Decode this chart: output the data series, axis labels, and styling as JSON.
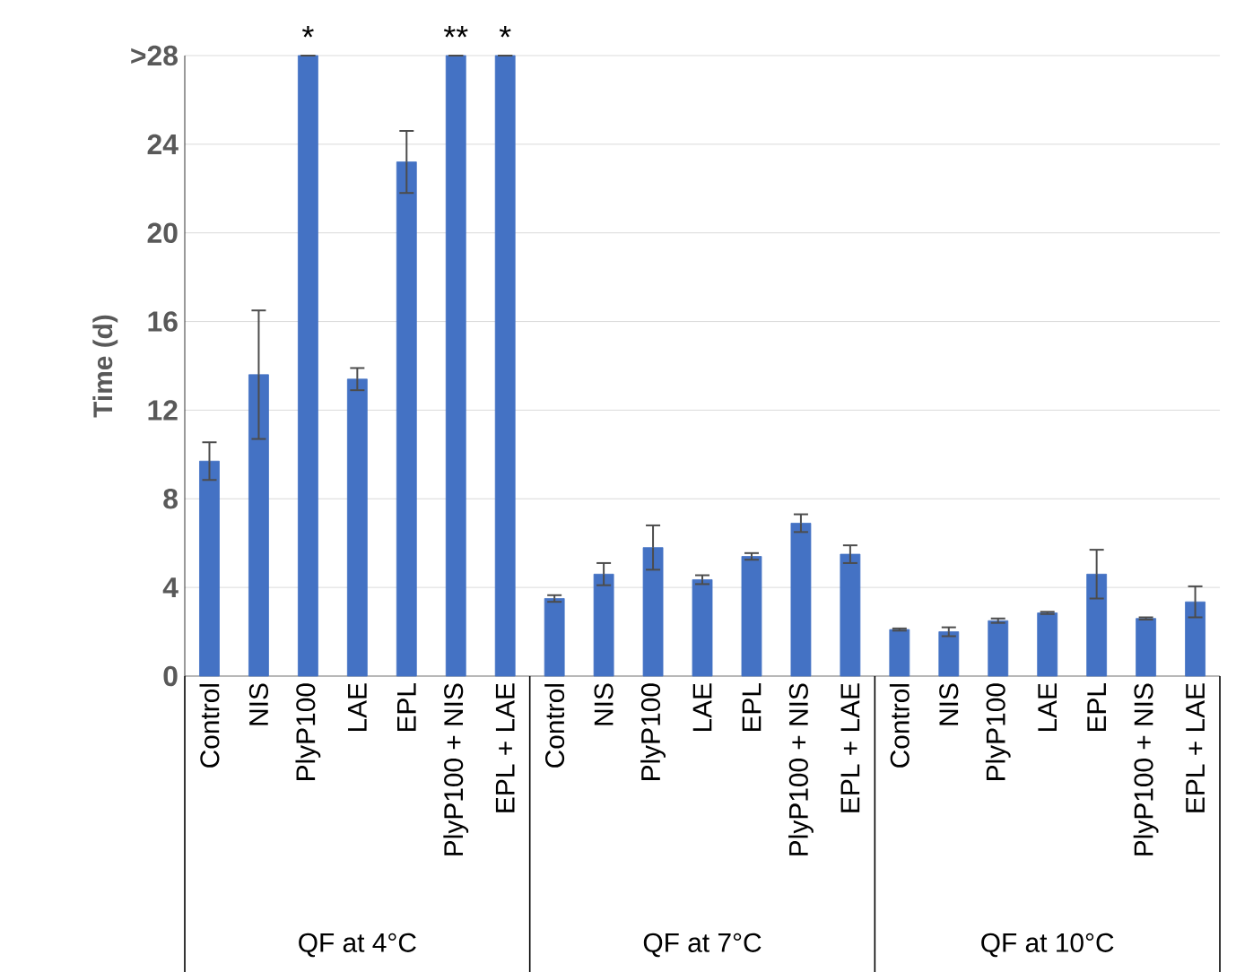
{
  "chart_data": {
    "type": "bar",
    "ylabel": "Time (d)",
    "color": "#4472c4",
    "categories": [
      "Control",
      "NIS",
      "PlyP100",
      "LAE",
      "EPL",
      "PlyP100 + NIS",
      "EPL + LAE",
      "Control",
      "NIS",
      "PlyP100",
      "LAE",
      "EPL",
      "PlyP100 + NIS",
      "EPL + LAE",
      "Control",
      "NIS",
      "PlyP100",
      "LAE",
      "EPL",
      "PlyP100 + NIS",
      "EPL + LAE"
    ],
    "values": [
      9.7,
      13.6,
      28,
      13.4,
      23.2,
      28,
      28,
      3.5,
      4.6,
      5.8,
      4.35,
      5.4,
      6.9,
      5.5,
      2.1,
      2.0,
      2.5,
      2.85,
      4.6,
      2.6,
      3.35
    ],
    "errors": [
      0.85,
      2.9,
      null,
      0.5,
      1.4,
      null,
      null,
      0.15,
      0.5,
      1.0,
      0.2,
      0.15,
      0.4,
      0.4,
      0.05,
      0.2,
      0.1,
      0.05,
      1.1,
      0.05,
      0.7
    ],
    "ylim": [
      0,
      28
    ],
    "yticks": [
      0,
      4,
      8,
      12,
      16,
      20,
      24,
      {
        "value": 28,
        "label": ">28"
      }
    ],
    "grid": "y",
    "annotations": [
      "QF at 4°C",
      "QF at 7°C",
      "QF at 10°C",
      {
        "text": "*",
        "x": "PlyP100",
        "y": 28
      },
      {
        "text": "**",
        "x": "PlyP100 + NIS",
        "y": 28
      },
      {
        "text": "*",
        "x": "EPL + LAE",
        "y": 28
      }
    ]
  }
}
